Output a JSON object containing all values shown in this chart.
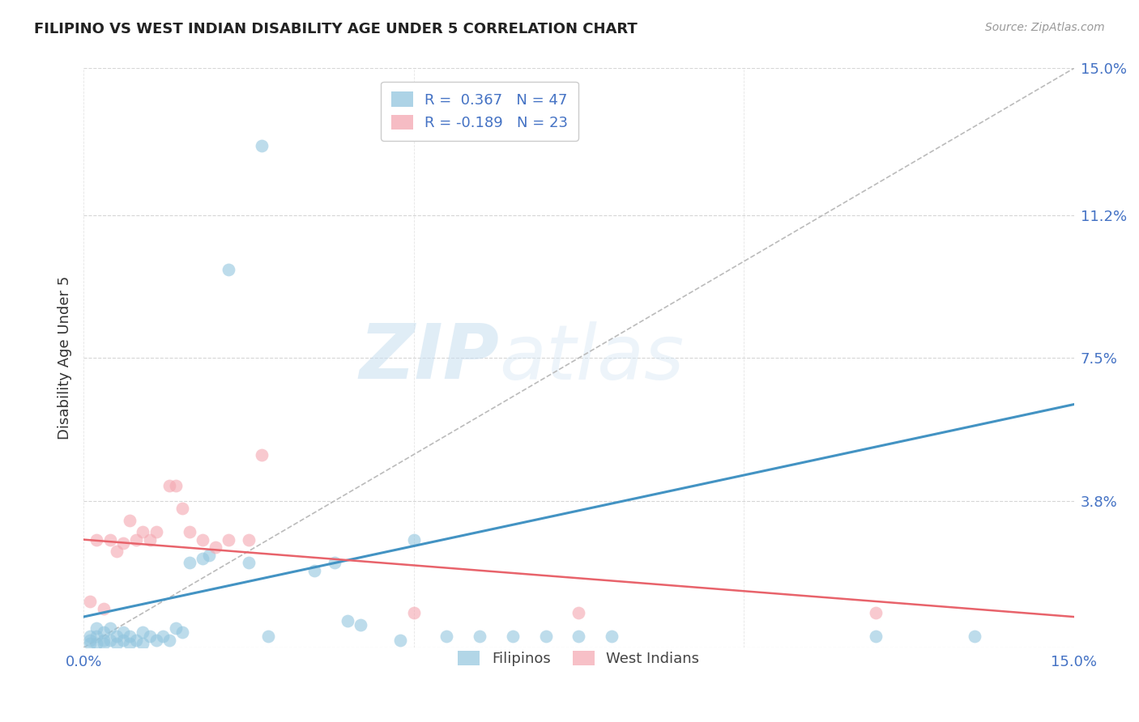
{
  "title": "FILIPINO VS WEST INDIAN DISABILITY AGE UNDER 5 CORRELATION CHART",
  "source": "Source: ZipAtlas.com",
  "ylabel": "Disability Age Under 5",
  "xlim": [
    0.0,
    0.15
  ],
  "ylim": [
    0.0,
    0.15
  ],
  "xtick_values": [
    0.0,
    0.05,
    0.1,
    0.15
  ],
  "xticklabels": [
    "0.0%",
    "",
    "",
    "15.0%"
  ],
  "ytick_values": [
    0.0,
    0.038,
    0.075,
    0.112,
    0.15
  ],
  "ytick_labels": [
    "",
    "3.8%",
    "7.5%",
    "11.2%",
    "15.0%"
  ],
  "watermark_zip": "ZIP",
  "watermark_atlas": "atlas",
  "filipino_color": "#92c5de",
  "west_indian_color": "#f4a6b0",
  "filipino_line_color": "#4393c3",
  "west_indian_line_color": "#e8636b",
  "diag_color": "#bbbbbb",
  "filipino_R": 0.367,
  "filipino_N": 47,
  "west_indian_R": -0.189,
  "west_indian_N": 23,
  "fili_x": [
    0.001,
    0.001,
    0.001,
    0.002,
    0.002,
    0.002,
    0.003,
    0.003,
    0.003,
    0.004,
    0.004,
    0.005,
    0.005,
    0.006,
    0.006,
    0.007,
    0.007,
    0.008,
    0.009,
    0.009,
    0.01,
    0.011,
    0.012,
    0.013,
    0.014,
    0.015,
    0.016,
    0.018,
    0.019,
    0.022,
    0.025,
    0.027,
    0.028,
    0.035,
    0.038,
    0.04,
    0.042,
    0.048,
    0.05,
    0.055,
    0.06,
    0.065,
    0.07,
    0.075,
    0.08,
    0.12,
    0.135
  ],
  "fili_y": [
    0.001,
    0.002,
    0.003,
    0.001,
    0.003,
    0.005,
    0.001,
    0.002,
    0.004,
    0.002,
    0.005,
    0.001,
    0.003,
    0.002,
    0.004,
    0.001,
    0.003,
    0.002,
    0.001,
    0.004,
    0.003,
    0.002,
    0.003,
    0.002,
    0.005,
    0.004,
    0.022,
    0.023,
    0.024,
    0.098,
    0.022,
    0.13,
    0.003,
    0.02,
    0.022,
    0.007,
    0.006,
    0.002,
    0.028,
    0.003,
    0.003,
    0.003,
    0.003,
    0.003,
    0.003,
    0.003,
    0.003
  ],
  "wi_x": [
    0.001,
    0.002,
    0.003,
    0.004,
    0.005,
    0.006,
    0.007,
    0.008,
    0.009,
    0.01,
    0.011,
    0.013,
    0.014,
    0.015,
    0.016,
    0.018,
    0.02,
    0.022,
    0.025,
    0.027,
    0.05,
    0.075,
    0.12
  ],
  "wi_y": [
    0.012,
    0.028,
    0.01,
    0.028,
    0.025,
    0.027,
    0.033,
    0.028,
    0.03,
    0.028,
    0.03,
    0.042,
    0.042,
    0.036,
    0.03,
    0.028,
    0.026,
    0.028,
    0.028,
    0.05,
    0.009,
    0.009,
    0.009
  ],
  "fili_trend_x": [
    0.0,
    0.15
  ],
  "fili_trend_y": [
    0.008,
    0.063
  ],
  "wi_trend_x": [
    0.0,
    0.15
  ],
  "wi_trend_y": [
    0.028,
    0.008
  ]
}
